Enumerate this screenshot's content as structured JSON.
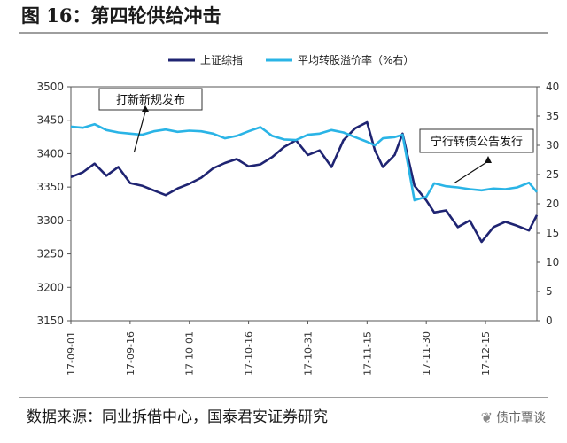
{
  "figure": {
    "title": "图 16：第四轮供给冲击",
    "source": "数据来源：同业拆借中心，国泰君安证券研究",
    "watermark": "债市覃谈"
  },
  "colors": {
    "index": "#1f2472",
    "premium": "#2ab4e6"
  },
  "chart_data": {
    "type": "line",
    "legend_position": "top",
    "grid": false,
    "x_ticks": [
      "17-09-01",
      "17-09-16",
      "17-10-01",
      "17-10-16",
      "17-10-31",
      "17-11-15",
      "17-11-30",
      "17-12-15"
    ],
    "x_range": [
      "17-09-01",
      "17-12-28"
    ],
    "y_left": {
      "label": "",
      "ylim": [
        3150,
        3500
      ],
      "ticks": [
        3150,
        3200,
        3250,
        3300,
        3350,
        3400,
        3450,
        3500
      ]
    },
    "y_right": {
      "label": "",
      "ylim": [
        0,
        40
      ],
      "ticks": [
        0,
        5,
        10,
        15,
        20,
        25,
        30,
        35,
        40
      ]
    },
    "series": [
      {
        "name": "上证综指",
        "axis": "left",
        "x": [
          "17-09-01",
          "17-09-04",
          "17-09-07",
          "17-09-10",
          "17-09-13",
          "17-09-16",
          "17-09-19",
          "17-09-22",
          "17-09-25",
          "17-09-28",
          "17-10-01",
          "17-10-04",
          "17-10-07",
          "17-10-10",
          "17-10-13",
          "17-10-16",
          "17-10-19",
          "17-10-22",
          "17-10-25",
          "17-10-28",
          "17-10-31",
          "17-11-03",
          "17-11-06",
          "17-11-09",
          "17-11-12",
          "17-11-15",
          "17-11-17",
          "17-11-19",
          "17-11-22",
          "17-11-24",
          "17-11-27",
          "17-11-30",
          "17-12-02",
          "17-12-05",
          "17-12-08",
          "17-12-11",
          "17-12-14",
          "17-12-17",
          "17-12-20",
          "17-12-23",
          "17-12-26",
          "17-12-28"
        ],
        "values": [
          3365,
          3372,
          3385,
          3367,
          3380,
          3356,
          3352,
          3345,
          3338,
          3348,
          3355,
          3364,
          3378,
          3386,
          3392,
          3381,
          3384,
          3395,
          3410,
          3420,
          3398,
          3405,
          3380,
          3420,
          3438,
          3447,
          3405,
          3380,
          3398,
          3430,
          3352,
          3330,
          3312,
          3315,
          3290,
          3300,
          3268,
          3290,
          3298,
          3292,
          3285,
          3308
        ]
      },
      {
        "name": "平均转股溢价率（%右）",
        "axis": "right",
        "x": [
          "17-09-01",
          "17-09-04",
          "17-09-07",
          "17-09-10",
          "17-09-13",
          "17-09-16",
          "17-09-19",
          "17-09-22",
          "17-09-25",
          "17-09-28",
          "17-10-01",
          "17-10-04",
          "17-10-07",
          "17-10-10",
          "17-10-13",
          "17-10-16",
          "17-10-19",
          "17-10-22",
          "17-10-25",
          "17-10-28",
          "17-10-31",
          "17-11-03",
          "17-11-06",
          "17-11-09",
          "17-11-12",
          "17-11-15",
          "17-11-17",
          "17-11-19",
          "17-11-22",
          "17-11-24",
          "17-11-27",
          "17-11-30",
          "17-12-02",
          "17-12-05",
          "17-12-08",
          "17-12-11",
          "17-12-14",
          "17-12-17",
          "17-12-20",
          "17-12-23",
          "17-12-26",
          "17-12-28"
        ],
        "values": [
          33.2,
          33.0,
          33.6,
          32.6,
          32.2,
          32.0,
          31.8,
          32.4,
          32.7,
          32.3,
          32.5,
          32.4,
          32.0,
          31.2,
          31.6,
          32.4,
          33.1,
          31.6,
          31.0,
          30.9,
          31.8,
          32.0,
          32.6,
          32.2,
          31.4,
          30.6,
          30.0,
          31.2,
          31.4,
          31.8,
          20.6,
          21.2,
          23.5,
          23.0,
          22.8,
          22.5,
          22.3,
          22.6,
          22.5,
          22.8,
          23.6,
          22.0
        ]
      }
    ],
    "annotations": [
      {
        "text": "打新新规发布",
        "x": "17-09-17",
        "axis": "left",
        "y": 3402
      },
      {
        "text": "宁行转债公告发行",
        "x": "17-12-07",
        "axis": "left",
        "y": 3345
      }
    ]
  }
}
